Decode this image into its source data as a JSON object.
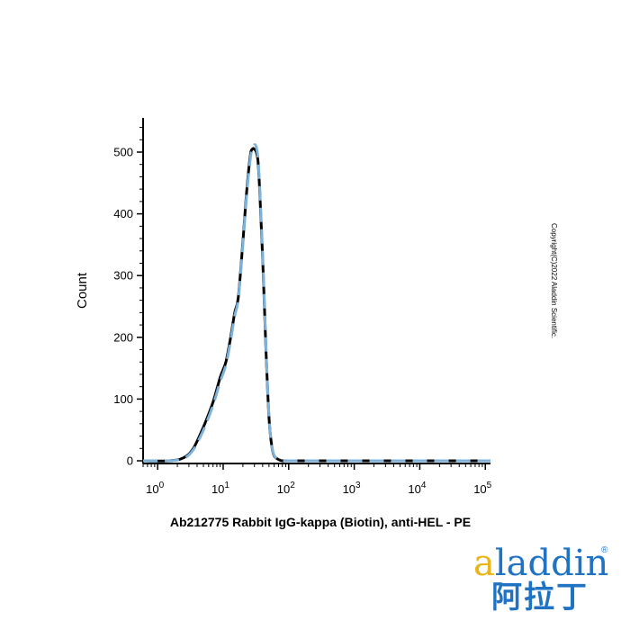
{
  "chart_data": {
    "type": "line",
    "title": "",
    "xlabel": "Ab212775 Rabbit IgG-kappa (Biotin), anti-HEL - PE",
    "ylabel": "Count",
    "x_scale": "log",
    "xlim": [
      0.6,
      120000
    ],
    "ylim": [
      0,
      550
    ],
    "y_ticks": [
      0,
      100,
      200,
      300,
      400,
      500
    ],
    "x_ticks": [
      {
        "base": "10",
        "exp": "0"
      },
      {
        "base": "10",
        "exp": "1"
      },
      {
        "base": "10",
        "exp": "2"
      },
      {
        "base": "10",
        "exp": "3"
      },
      {
        "base": "10",
        "exp": "4"
      },
      {
        "base": "10",
        "exp": "5"
      }
    ],
    "x_tick_values": [
      1,
      10,
      100,
      1000,
      10000,
      100000
    ],
    "grid": false,
    "series": [
      {
        "style": "solid",
        "color": "#000000",
        "x": [
          0.6,
          1.5,
          2.5,
          3.5,
          5,
          7,
          9,
          11,
          13,
          15,
          17,
          20,
          23,
          26,
          28,
          30,
          32,
          34,
          36,
          40,
          45,
          50,
          55,
          60,
          70,
          80,
          100,
          200,
          1000,
          10000,
          120000
        ],
        "y": [
          0,
          0,
          5,
          20,
          55,
          95,
          135,
          160,
          200,
          240,
          265,
          355,
          440,
          495,
          505,
          505,
          500,
          485,
          440,
          330,
          180,
          70,
          25,
          8,
          2,
          0,
          0,
          0,
          0,
          0,
          0
        ]
      },
      {
        "style": "dashed",
        "color": "#7fb2d9",
        "x": [
          0.6,
          1.5,
          2.5,
          3.5,
          5,
          7,
          9,
          11,
          13,
          15,
          17,
          20,
          23,
          26,
          28,
          30,
          32,
          34,
          36,
          40,
          45,
          50,
          55,
          60,
          70,
          80,
          100,
          200,
          1000,
          10000,
          120000
        ],
        "y": [
          0,
          0,
          4,
          18,
          50,
          90,
          128,
          155,
          195,
          235,
          262,
          350,
          435,
          490,
          505,
          512,
          508,
          490,
          445,
          335,
          185,
          72,
          26,
          9,
          2,
          0,
          0,
          0,
          0,
          0,
          0
        ]
      }
    ]
  },
  "copyright": "Copyright(C)2022 Aladdin Scientific.",
  "logo": {
    "word_a": "a",
    "word_rest": "laddin",
    "registered": "®",
    "chinese": "阿拉丁"
  }
}
